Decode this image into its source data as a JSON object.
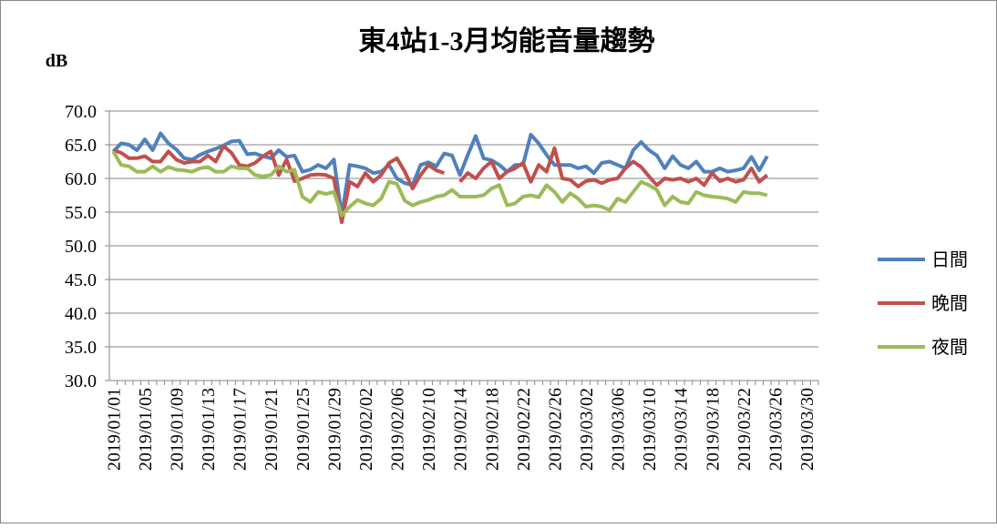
{
  "chart_data": {
    "type": "line",
    "title": "東4站1-3月均能音量趨勢",
    "y_label": "dB",
    "categories": [
      "2019/01/01",
      null,
      null,
      null,
      "2019/01/05",
      null,
      null,
      null,
      "2019/01/09",
      null,
      null,
      null,
      "2019/01/13",
      null,
      null,
      null,
      "2019/01/17",
      null,
      null,
      null,
      "2019/01/21",
      null,
      null,
      null,
      "2019/01/25",
      null,
      null,
      null,
      "2019/01/29",
      null,
      null,
      null,
      "2019/02/02",
      null,
      null,
      null,
      "2019/02/06",
      null,
      null,
      null,
      "2019/02/10",
      null,
      null,
      null,
      "2019/02/14",
      null,
      null,
      null,
      "2019/02/18",
      null,
      null,
      null,
      "2019/02/22",
      null,
      null,
      null,
      "2019/02/26",
      null,
      null,
      null,
      "2019/03/02",
      null,
      null,
      null,
      "2019/03/06",
      null,
      null,
      null,
      "2019/03/10",
      null,
      null,
      null,
      "2019/03/14",
      null,
      null,
      null,
      "2019/03/18",
      null,
      null,
      null,
      "2019/03/22",
      null,
      null,
      null,
      "2019/03/26",
      null,
      null,
      null,
      "2019/03/30",
      null
    ],
    "series": [
      {
        "name": "日間",
        "color": "#4f81bd",
        "values": [
          64.0,
          65.2,
          65.0,
          64.2,
          65.8,
          64.2,
          66.7,
          65.2,
          64.3,
          63.0,
          62.8,
          63.5,
          64.0,
          64.4,
          64.9,
          65.5,
          65.6,
          63.6,
          63.7,
          63.3,
          63.0,
          64.2,
          63.2,
          63.4,
          61.0,
          61.3,
          62.0,
          61.5,
          62.8,
          54.5,
          62.0,
          61.8,
          61.5,
          60.8,
          61.0,
          62.0,
          60.0,
          59.3,
          59.0,
          62.0,
          62.4,
          61.8,
          63.7,
          63.4,
          60.5,
          63.5,
          66.3,
          63.0,
          62.7,
          62.0,
          61.0,
          62.0,
          62.0,
          66.5,
          65.2,
          63.5,
          62.0,
          62.0,
          62.0,
          61.5,
          61.8,
          60.8,
          62.3,
          62.5,
          62.0,
          61.5,
          64.2,
          65.4,
          64.2,
          63.4,
          61.5,
          63.3,
          62.0,
          61.5,
          62.5,
          61.0,
          61.0,
          61.5,
          61.0,
          61.2,
          61.5,
          63.2,
          61.2,
          63.3,
          null,
          null,
          null,
          null,
          null,
          null
        ]
      },
      {
        "name": "晚間",
        "color": "#c0504d",
        "values": [
          64.2,
          63.8,
          63.0,
          63.0,
          63.3,
          62.5,
          62.5,
          64.0,
          62.8,
          62.3,
          62.5,
          62.5,
          63.4,
          62.5,
          64.8,
          63.8,
          62.0,
          61.8,
          62.3,
          63.3,
          64.0,
          60.5,
          62.8,
          59.6,
          60.0,
          60.5,
          60.6,
          60.5,
          60.0,
          53.5,
          59.5,
          58.8,
          60.8,
          59.5,
          60.5,
          62.3,
          63.0,
          61.0,
          58.5,
          60.5,
          62.0,
          61.2,
          60.8,
          null,
          59.5,
          60.8,
          60.0,
          61.5,
          62.5,
          60.0,
          61.0,
          61.5,
          62.3,
          59.5,
          62.0,
          61.0,
          64.5,
          60.0,
          59.8,
          58.8,
          59.6,
          59.8,
          59.3,
          59.8,
          60.0,
          61.5,
          62.5,
          61.7,
          60.3,
          59.0,
          60.0,
          59.8,
          60.0,
          59.5,
          60.0,
          59.0,
          60.8,
          59.6,
          60.0,
          59.5,
          59.8,
          61.5,
          59.5,
          60.5,
          null,
          null,
          null,
          null,
          null,
          null
        ]
      },
      {
        "name": "夜間",
        "color": "#9bbb59",
        "values": [
          64.0,
          62.0,
          61.8,
          61.0,
          61.0,
          61.8,
          61.0,
          61.7,
          61.3,
          61.2,
          61.0,
          61.5,
          61.7,
          61.0,
          61.0,
          61.8,
          61.5,
          61.5,
          60.5,
          60.3,
          60.5,
          61.8,
          61.0,
          61.3,
          57.3,
          56.5,
          58.0,
          57.7,
          58.0,
          54.5,
          55.8,
          56.8,
          56.3,
          56.0,
          57.0,
          59.5,
          59.2,
          56.7,
          56.0,
          56.5,
          56.8,
          57.3,
          57.5,
          58.3,
          57.3,
          57.3,
          57.3,
          57.5,
          58.5,
          59.0,
          56.0,
          56.3,
          57.3,
          57.5,
          57.2,
          59.0,
          58.0,
          56.5,
          57.8,
          57.0,
          55.8,
          56.0,
          55.8,
          55.3,
          57.0,
          56.5,
          58.0,
          59.5,
          59.0,
          58.3,
          56.0,
          57.3,
          56.5,
          56.3,
          58.0,
          57.5,
          57.3,
          57.2,
          57.0,
          56.5,
          58.0,
          57.8,
          57.8,
          57.5,
          null,
          null,
          null,
          null,
          null,
          null
        ]
      }
    ],
    "ylim": [
      30,
      70
    ],
    "yticks": [
      {
        "value": 30,
        "label": "30.0"
      },
      {
        "value": 35,
        "label": "35.0"
      },
      {
        "value": 40,
        "label": "40.0"
      },
      {
        "value": 45,
        "label": "45.0"
      },
      {
        "value": 50,
        "label": "50.0"
      },
      {
        "value": 55,
        "label": "55.0"
      },
      {
        "value": 60,
        "label": "60.0"
      },
      {
        "value": 65,
        "label": "65.0"
      },
      {
        "value": 70,
        "label": "70.0"
      }
    ],
    "grid": true,
    "legend": "right"
  }
}
